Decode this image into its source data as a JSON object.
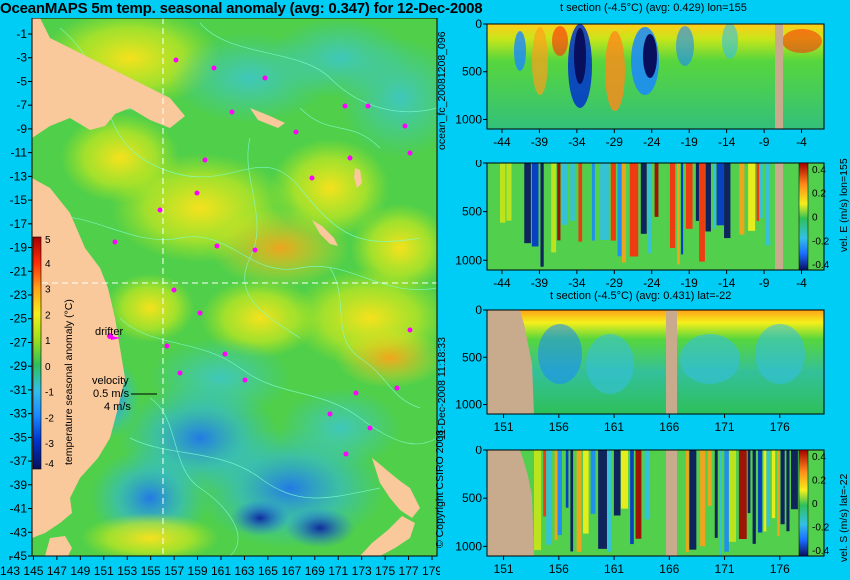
{
  "main_title": "OceanMAPS 5m temp. seasonal anomaly (avg: 0.347) for 12-Dec-2008",
  "map": {
    "lat_ticks": [
      "-1",
      "-3",
      "-5",
      "-7",
      "-9",
      "-11",
      "-13",
      "-15",
      "-17",
      "-19",
      "-21",
      "-23",
      "-25",
      "-27",
      "-29",
      "-31",
      "-33",
      "-35",
      "-37",
      "-39",
      "-41",
      "-43",
      "-45"
    ],
    "lon_ticks": [
      "143",
      "145",
      "147",
      "149",
      "151",
      "153",
      "155",
      "157",
      "159",
      "161",
      "163",
      "165",
      "167",
      "169",
      "171",
      "173",
      "175",
      "177",
      "179"
    ],
    "colorbar_label": "temperature seasonal anomaly (°C)",
    "colorbar_ticks": [
      "5",
      "4",
      "3",
      "2",
      "1",
      "0",
      "-1",
      "-2",
      "-3",
      "-4"
    ],
    "drifter_label": "drifter",
    "velocity_label": "velocity",
    "velocity_scale": "0.5 m/s",
    "velocity_scale_2": "4 m/s",
    "crosshair": {
      "lon": 155,
      "lat": -22
    }
  },
  "panels": {
    "lon_t_title": "t section (-4.5°C) (avg: 0.429) lon=155",
    "lat_t_title": "t section (-4.5°C) (avg: 0.431) lat=-22",
    "lon_x_ticks": [
      "-44",
      "-39",
      "-34",
      "-29",
      "-24",
      "-19",
      "-14",
      "-9",
      "-4"
    ],
    "lat_x_ticks": [
      "151",
      "156",
      "161",
      "166",
      "171",
      "176"
    ],
    "depth_ticks": [
      "0",
      "500",
      "1000"
    ],
    "vel_e_label": "vel. E (m/s) lon=155",
    "vel_s_label": "vel. S (m/s) lat=-22",
    "vel_ticks": [
      "0.4",
      "0.2",
      "0",
      "-0.2",
      "-0.4"
    ]
  },
  "side_labels": {
    "run_id": "ocean_fc_20081208_096",
    "timestamp": "11-Dec-2008 11:18:33",
    "copyright": "© Copyright CSIRO 2008"
  },
  "colors": {
    "background": "#00cdf5",
    "land": "#f9c89b",
    "section_land": "#c8aa8c",
    "drifter": "#ff00ff",
    "contour": "#7fffd4",
    "anomaly_scale": [
      "#08105e",
      "#0033cc",
      "#1a88ff",
      "#33c0e6",
      "#2ec05a",
      "#57d63d",
      "#b3e61a",
      "#f5ef1a",
      "#ffa019",
      "#ff2a0a",
      "#a50000"
    ]
  },
  "chart_data": [
    {
      "type": "heatmap",
      "title": "OceanMAPS 5m temp. seasonal anomaly (avg: 0.347) for 12-Dec-2008",
      "xlabel": "",
      "ylabel": "",
      "xlim": [
        143,
        180
      ],
      "ylim": [
        -45,
        0
      ],
      "colorbar": {
        "label": "temperature seasonal anomaly (°C)",
        "range": [
          -4,
          5
        ]
      }
    },
    {
      "type": "heatmap",
      "title": "t section (-4.5°C) (avg: 0.429) lon=155",
      "xlim": [
        -46,
        -1
      ],
      "ylim": [
        1100,
        0
      ]
    },
    {
      "type": "heatmap",
      "title": "",
      "xlim": [
        -46,
        -1
      ],
      "ylim": [
        1100,
        0
      ],
      "colorbar": {
        "label": "vel. E (m/s) lon=155",
        "range": [
          -0.4,
          0.4
        ]
      }
    },
    {
      "type": "heatmap",
      "title": "t section (-4.5°C) (avg: 0.431) lat=-22",
      "xlim": [
        149.5,
        180
      ],
      "ylim": [
        1100,
        0
      ]
    },
    {
      "type": "heatmap",
      "title": "",
      "xlim": [
        149.5,
        180
      ],
      "ylim": [
        1100,
        0
      ],
      "colorbar": {
        "label": "vel. S (m/s) lat=-22",
        "range": [
          -0.4,
          0.4
        ]
      }
    }
  ]
}
